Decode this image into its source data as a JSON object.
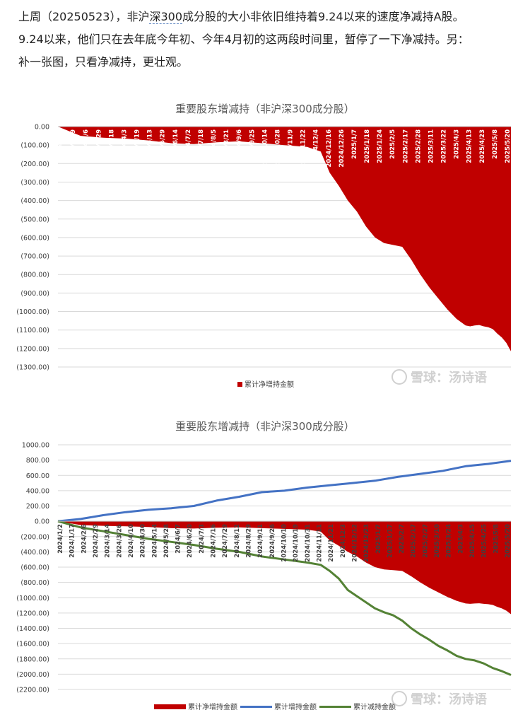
{
  "intro": {
    "line1_a": "上周（20250523），非沪",
    "line1_link": "深300",
    "line1_b": "成分股的大小非依旧维持着9.24以来的速度净减持A股。",
    "line2": "9.24以来，他们只在去年底今年初、今年4月初的这两段时间里，暂停了一下净减持。另：",
    "line3": "补一张图，只看净减持，更壮观。"
  },
  "watermark": "雪球：汤诗语",
  "colors": {
    "net": "#c00000",
    "increase": "#4472c4",
    "decrease": "#548235",
    "grid": "#d9d9d9"
  },
  "chart_data": [
    {
      "type": "area",
      "title": "重要股东增减持（非沪深300成分股）",
      "ylim": [
        -1300,
        0
      ],
      "y_ticks": [
        "0.00",
        "(100.00)",
        "(200.00)",
        "(300.00)",
        "(400.00)",
        "(500.00)",
        "(600.00)",
        "(700.00)",
        "(800.00)",
        "(900.00)",
        "(1000.00)",
        "(1100.00)",
        "(1200.00)",
        "(1300.00)"
      ],
      "x_ticks": [
        "2024/1/2",
        "2024/1/19",
        "2024/2/6",
        "2024/2/29",
        "2024/3/18",
        "2024/4/3",
        "2024/4/19",
        "2024/5/13",
        "2024/5/29",
        "2024/6/14",
        "2024/7/2",
        "2024/7/18",
        "2024/8/5",
        "2024/8/21",
        "2024/9/6",
        "2024/9/25",
        "2024/10/14",
        "2024/10/28",
        "2024/11/9",
        "2024/11/22",
        "2024/12/4",
        "2024/12/16",
        "2024/12/26",
        "2025/1/7",
        "2025/1/18",
        "2025/1/24",
        "2025/2/5",
        "2025/2/17",
        "2025/2/28",
        "2025/3/11",
        "2025/3/22",
        "2025/4/3",
        "2025/4/13",
        "2025/4/23",
        "2025/5/8",
        "2025/5/20"
      ],
      "legend": {
        "placement": "bottom"
      },
      "series": [
        {
          "name": "累计净增持金额",
          "x": [
            0,
            0.02,
            0.05,
            0.1,
            0.15,
            0.2,
            0.25,
            0.3,
            0.35,
            0.4,
            0.45,
            0.5,
            0.55,
            0.58,
            0.6,
            0.62,
            0.64,
            0.66,
            0.68,
            0.7,
            0.72,
            0.74,
            0.76,
            0.78,
            0.8,
            0.82,
            0.84,
            0.86,
            0.88,
            0.9,
            0.91,
            0.92,
            0.93,
            0.94,
            0.95,
            0.96,
            0.97,
            0.98,
            0.99,
            1
          ],
          "values": [
            0,
            -20,
            -50,
            -60,
            -65,
            -75,
            -90,
            -95,
            -85,
            -80,
            -90,
            -100,
            -110,
            -135,
            -250,
            -320,
            -400,
            -460,
            -540,
            -600,
            -630,
            -640,
            -650,
            -720,
            -800,
            -870,
            -930,
            -990,
            -1040,
            -1075,
            -1080,
            -1075,
            -1073,
            -1080,
            -1085,
            -1095,
            -1120,
            -1140,
            -1170,
            -1215
          ]
        }
      ]
    },
    {
      "type": "line",
      "title": "重要股东增减持（非沪深300成分股）",
      "ylim": [
        -2200,
        1000
      ],
      "y_ticks": [
        "1000.00",
        "800.00",
        "600.00",
        "400.00",
        "200.00",
        "0.00",
        "(200.00)",
        "(400.00)",
        "(600.00)",
        "(800.00)",
        "(1000.00)",
        "(1200.00)",
        "(1400.00)",
        "(1600.00)",
        "(1800.00)",
        "(2000.00)",
        "(2200.00)"
      ],
      "x_ticks": [
        "2024/1/2",
        "2024/1/17",
        "2024/2/6",
        "2024/2/29",
        "2024/3/14",
        "2024/3/26",
        "2024/4/10",
        "2024/4/30",
        "2024/5/14",
        "2024/5/28",
        "2024/6/7",
        "2024/6/20",
        "2024/7/3",
        "2024/7/16",
        "2024/7/29",
        "2024/8/12",
        "2024/8/29",
        "2024/9/11",
        "2024/9/26",
        "2024/10/10",
        "2024/10/19",
        "2024/10/31",
        "2024/11/11",
        "2024/11/21",
        "2024/12/3",
        "2024/12/12",
        "2024/12/23",
        "2025/1/7",
        "2025/1/17",
        "2025/2/7",
        "2025/2/17",
        "2025/2/27",
        "2025/3/10",
        "2025/3/24",
        "2025/4/3",
        "2025/4/15",
        "2025/4/25",
        "2025/5/8",
        "2025/5/20"
      ],
      "legend": {
        "placement": "bottom"
      },
      "series": [
        {
          "name": "累计净增持金额",
          "x": [
            0,
            0.02,
            0.05,
            0.1,
            0.15,
            0.2,
            0.25,
            0.3,
            0.35,
            0.4,
            0.45,
            0.5,
            0.55,
            0.58,
            0.6,
            0.62,
            0.64,
            0.66,
            0.68,
            0.7,
            0.72,
            0.74,
            0.76,
            0.78,
            0.8,
            0.82,
            0.84,
            0.86,
            0.88,
            0.9,
            0.91,
            0.92,
            0.93,
            0.94,
            0.95,
            0.96,
            0.97,
            0.98,
            0.99,
            1
          ],
          "values": [
            0,
            -20,
            -50,
            -60,
            -65,
            -75,
            -90,
            -95,
            -85,
            -80,
            -90,
            -100,
            -110,
            -135,
            -250,
            -320,
            -400,
            -460,
            -540,
            -600,
            -630,
            -640,
            -650,
            -720,
            -800,
            -870,
            -930,
            -990,
            -1040,
            -1075,
            -1080,
            -1075,
            -1073,
            -1080,
            -1085,
            -1095,
            -1120,
            -1140,
            -1170,
            -1215
          ]
        },
        {
          "name": "累计增持金额",
          "x": [
            0,
            0.05,
            0.1,
            0.15,
            0.2,
            0.25,
            0.3,
            0.35,
            0.4,
            0.45,
            0.5,
            0.55,
            0.6,
            0.65,
            0.7,
            0.75,
            0.8,
            0.85,
            0.9,
            0.95,
            1
          ],
          "values": [
            0,
            30,
            80,
            120,
            150,
            170,
            200,
            270,
            320,
            380,
            400,
            440,
            470,
            500,
            530,
            580,
            620,
            660,
            720,
            750,
            790
          ]
        },
        {
          "name": "累计减持金额",
          "x": [
            0,
            0.05,
            0.1,
            0.15,
            0.2,
            0.25,
            0.3,
            0.35,
            0.4,
            0.45,
            0.5,
            0.55,
            0.58,
            0.6,
            0.62,
            0.64,
            0.66,
            0.68,
            0.7,
            0.72,
            0.74,
            0.76,
            0.78,
            0.8,
            0.82,
            0.84,
            0.86,
            0.88,
            0.9,
            0.92,
            0.94,
            0.96,
            0.98,
            1
          ],
          "values": [
            0,
            -80,
            -130,
            -180,
            -230,
            -270,
            -310,
            -360,
            -400,
            -460,
            -500,
            -540,
            -570,
            -650,
            -750,
            -900,
            -980,
            -1060,
            -1140,
            -1190,
            -1230,
            -1300,
            -1400,
            -1480,
            -1550,
            -1630,
            -1690,
            -1760,
            -1800,
            -1820,
            -1860,
            -1920,
            -1960,
            -2010
          ]
        }
      ]
    }
  ]
}
